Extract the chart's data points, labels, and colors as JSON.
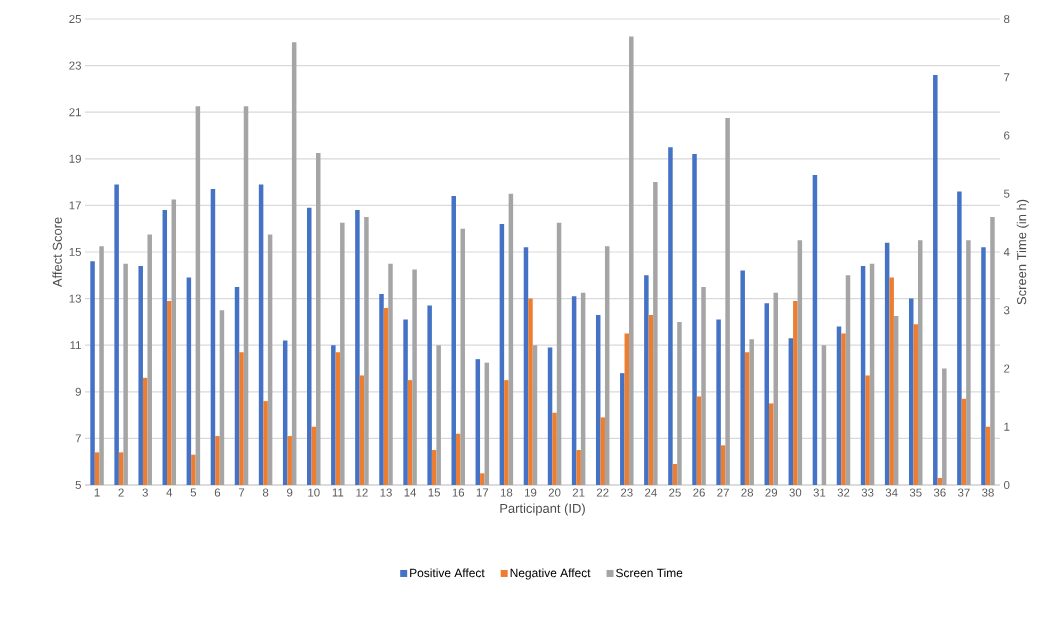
{
  "chart_data": {
    "type": "bar",
    "xlabel": "Participant (ID)",
    "ylabel": "Affect Score",
    "y2label": "Screen Time (in h)",
    "categories": [
      "1",
      "2",
      "3",
      "4",
      "5",
      "6",
      "7",
      "8",
      "9",
      "10",
      "11",
      "12",
      "13",
      "14",
      "15",
      "16",
      "17",
      "18",
      "19",
      "20",
      "21",
      "22",
      "23",
      "24",
      "25",
      "26",
      "27",
      "28",
      "29",
      "30",
      "31",
      "32",
      "33",
      "34",
      "35",
      "36",
      "37",
      "38"
    ],
    "series": [
      {
        "name": "Positive Affect",
        "color": "#4472c4",
        "values": [
          14.6,
          17.9,
          14.4,
          16.8,
          13.9,
          17.7,
          13.5,
          17.9,
          11.2,
          16.9,
          11.0,
          16.8,
          13.2,
          12.1,
          12.7,
          17.4,
          10.4,
          16.2,
          15.2,
          10.9,
          13.1,
          12.3,
          9.8,
          14.0,
          19.5,
          19.2,
          12.1,
          14.2,
          12.8,
          11.3,
          18.3,
          11.8,
          14.4,
          15.4,
          13.0,
          22.6,
          17.6,
          15.2
        ]
      },
      {
        "name": "Negative Affect",
        "color": "#ed7d31",
        "values": [
          6.4,
          6.4,
          9.6,
          12.9,
          6.3,
          7.1,
          10.7,
          8.6,
          7.1,
          7.5,
          10.7,
          9.7,
          12.6,
          9.5,
          6.5,
          7.2,
          5.5,
          9.5,
          13.0,
          8.1,
          6.5,
          7.9,
          11.5,
          12.3,
          5.9,
          8.8,
          6.7,
          10.7,
          8.5,
          12.9,
          null,
          11.5,
          9.7,
          13.9,
          11.9,
          5.3,
          8.7,
          7.5
        ]
      },
      {
        "name": "Screen Time",
        "color": "#a5a5a5",
        "axis": "y2",
        "values": [
          4.1,
          3.8,
          4.3,
          4.9,
          6.5,
          3.0,
          6.5,
          4.3,
          7.6,
          5.7,
          4.5,
          4.6,
          3.8,
          3.7,
          2.4,
          4.4,
          2.1,
          5.0,
          2.4,
          4.5,
          3.3,
          4.1,
          7.7,
          5.2,
          2.8,
          3.4,
          6.3,
          2.5,
          3.3,
          4.2,
          2.4,
          3.6,
          3.8,
          2.9,
          4.2,
          2.0,
          4.2,
          4.6
        ]
      }
    ],
    "ylim": [
      5,
      25
    ],
    "yticks": [
      5,
      7,
      9,
      11,
      13,
      15,
      17,
      19,
      21,
      23,
      25
    ],
    "y2lim": [
      0,
      8
    ],
    "y2ticks": [
      0,
      1,
      2,
      3,
      4,
      5,
      6,
      7,
      8
    ],
    "grid": "y",
    "legend": "bottom"
  }
}
